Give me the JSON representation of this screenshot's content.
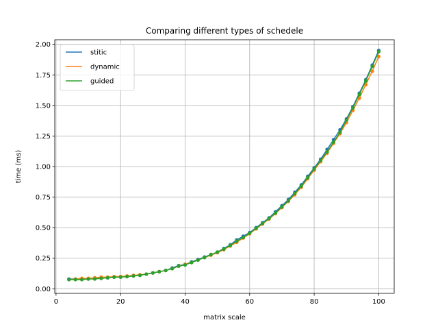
{
  "chart_data": {
    "type": "line",
    "title": "Comparing different types of schedele",
    "xlabel": "matrix scale",
    "ylabel": "time (ms)",
    "xlim": [
      -0.4,
      104.8
    ],
    "ylim": [
      -0.0375,
      2.0375
    ],
    "xticks": [
      0,
      20,
      40,
      60,
      80,
      100
    ],
    "yticks": [
      0.0,
      0.25,
      0.5,
      0.75,
      1.0,
      1.25,
      1.5,
      1.75,
      2.0
    ],
    "xtick_labels": [
      "0",
      "20",
      "40",
      "60",
      "80",
      "100"
    ],
    "ytick_labels": [
      "0.00",
      "0.25",
      "0.50",
      "0.75",
      "1.00",
      "1.25",
      "1.50",
      "1.75",
      "2.00"
    ],
    "grid": true,
    "legend": "upper-left",
    "x": [
      4,
      6,
      8,
      10,
      12,
      14,
      16,
      18,
      20,
      22,
      24,
      26,
      28,
      30,
      32,
      34,
      36,
      38,
      40,
      42,
      44,
      46,
      48,
      50,
      52,
      54,
      56,
      58,
      60,
      62,
      64,
      66,
      68,
      70,
      72,
      74,
      76,
      78,
      80,
      82,
      84,
      86,
      88,
      90,
      92,
      94,
      96,
      98,
      100
    ],
    "series": [
      {
        "name": "stitic",
        "color": "#1f77b4",
        "values": [
          0.08,
          0.08,
          0.08,
          0.08,
          0.085,
          0.09,
          0.09,
          0.095,
          0.1,
          0.1,
          0.105,
          0.11,
          0.12,
          0.13,
          0.14,
          0.15,
          0.17,
          0.19,
          0.2,
          0.22,
          0.24,
          0.26,
          0.28,
          0.3,
          0.33,
          0.36,
          0.4,
          0.43,
          0.46,
          0.5,
          0.54,
          0.58,
          0.63,
          0.68,
          0.73,
          0.79,
          0.85,
          0.92,
          0.99,
          1.06,
          1.14,
          1.22,
          1.3,
          1.39,
          1.49,
          1.6,
          1.71,
          1.83,
          1.95
        ]
      },
      {
        "name": "dynamic",
        "color": "#ff7f0e",
        "values": [
          0.075,
          0.08,
          0.085,
          0.085,
          0.09,
          0.095,
          0.095,
          0.1,
          0.1,
          0.105,
          0.11,
          0.115,
          0.12,
          0.13,
          0.14,
          0.15,
          0.165,
          0.185,
          0.2,
          0.215,
          0.235,
          0.255,
          0.275,
          0.295,
          0.32,
          0.35,
          0.38,
          0.415,
          0.45,
          0.49,
          0.53,
          0.57,
          0.615,
          0.665,
          0.715,
          0.77,
          0.83,
          0.9,
          0.97,
          1.04,
          1.11,
          1.19,
          1.27,
          1.36,
          1.46,
          1.56,
          1.67,
          1.78,
          1.9
        ]
      },
      {
        "name": "guided",
        "color": "#2ca02c",
        "values": [
          0.075,
          0.075,
          0.075,
          0.08,
          0.08,
          0.085,
          0.09,
          0.095,
          0.095,
          0.1,
          0.105,
          0.11,
          0.12,
          0.13,
          0.14,
          0.15,
          0.165,
          0.185,
          0.195,
          0.215,
          0.235,
          0.255,
          0.28,
          0.3,
          0.325,
          0.355,
          0.39,
          0.42,
          0.455,
          0.495,
          0.535,
          0.575,
          0.62,
          0.67,
          0.72,
          0.78,
          0.84,
          0.91,
          0.98,
          1.05,
          1.12,
          1.2,
          1.28,
          1.38,
          1.48,
          1.59,
          1.7,
          1.82,
          1.94
        ]
      }
    ]
  }
}
